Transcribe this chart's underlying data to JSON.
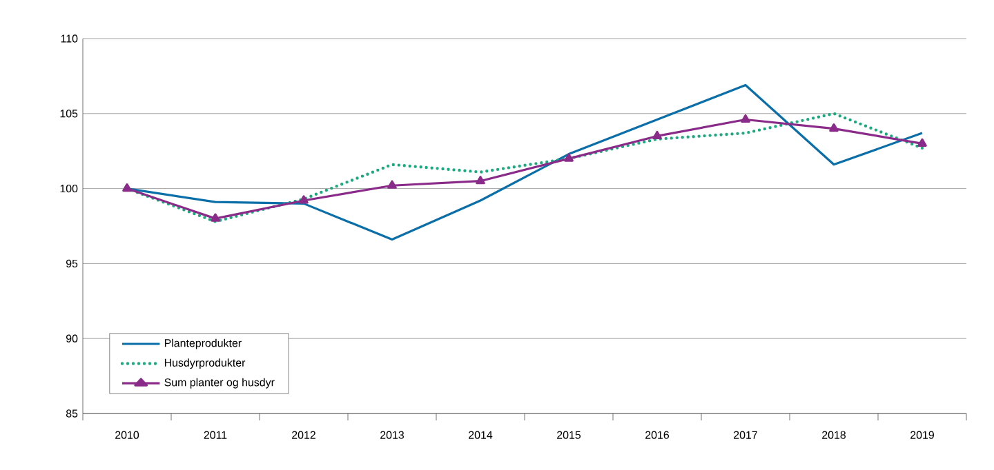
{
  "chart_data": {
    "type": "line",
    "categories": [
      "2010",
      "2011",
      "2012",
      "2013",
      "2014",
      "2015",
      "2016",
      "2017",
      "2018",
      "2019"
    ],
    "ylim": [
      85,
      110
    ],
    "yticks": [
      85,
      90,
      95,
      100,
      105,
      110
    ],
    "grid": "y",
    "legend": "bottom left",
    "series": [
      {
        "name": "Planteprodukter",
        "color": "#0a6fa8",
        "line_style": "solid",
        "marker": "none",
        "values": [
          100,
          99.1,
          99.0,
          96.6,
          99.2,
          102.3,
          104.6,
          106.9,
          101.6,
          103.7
        ]
      },
      {
        "name": "Husdyrprodukter",
        "color": "#1aaa7e",
        "line_style": "dotted",
        "marker": "none",
        "values": [
          100,
          97.8,
          99.3,
          101.6,
          101.1,
          102.0,
          103.3,
          103.7,
          105.0,
          102.7
        ]
      },
      {
        "name": "Sum planter og husdyr",
        "color": "#8a2b8a",
        "line_style": "solid",
        "marker": "triangle",
        "values": [
          100,
          98.0,
          99.2,
          100.2,
          100.5,
          102.0,
          103.5,
          104.6,
          104.0,
          103.0
        ]
      }
    ]
  }
}
